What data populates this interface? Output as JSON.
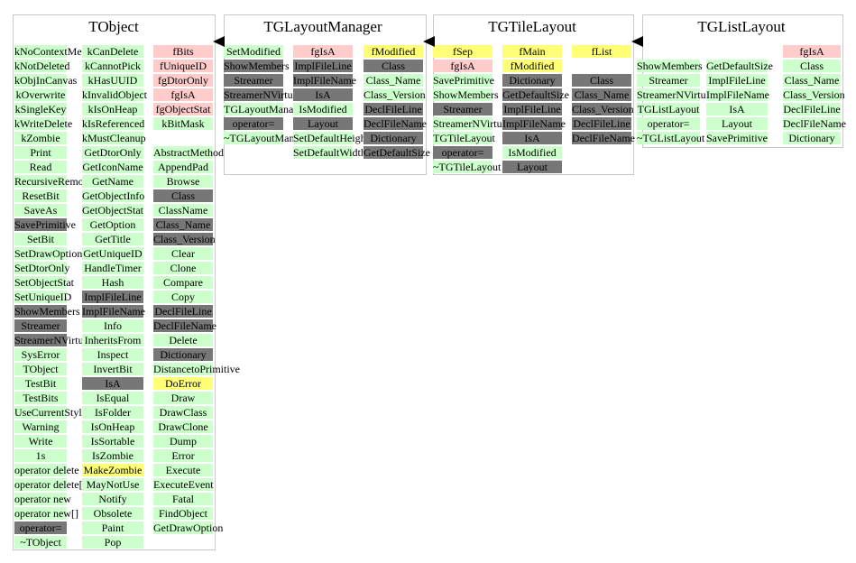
{
  "colors": {
    "data_member": "#ffcccc",
    "data_member_modified": "#ffff77",
    "method": "#ccffcc",
    "inherited": "#777777",
    "highlight": "#ffff77",
    "border": "#c8c8c8"
  },
  "classes": [
    {
      "name": "TObject",
      "columns": [
        [
          {
            "t": "kNoContextMenu",
            "c": "method"
          },
          {
            "t": "kNotDeleted",
            "c": "method"
          },
          {
            "t": "kObjInCanvas",
            "c": "method"
          },
          {
            "t": "kOverwrite",
            "c": "method"
          },
          {
            "t": "kSingleKey",
            "c": "method"
          },
          {
            "t": "kWriteDelete",
            "c": "method"
          },
          {
            "t": "kZombie",
            "c": "method"
          },
          {
            "t": "Print",
            "c": "method"
          },
          {
            "t": "Read",
            "c": "method"
          },
          {
            "t": "RecursiveRemove",
            "c": "method"
          },
          {
            "t": "ResetBit",
            "c": "method"
          },
          {
            "t": "SaveAs",
            "c": "method"
          },
          {
            "t": "SavePrimitive",
            "c": "inherited"
          },
          {
            "t": "SetBit",
            "c": "method"
          },
          {
            "t": "SetDrawOption",
            "c": "method"
          },
          {
            "t": "SetDtorOnly",
            "c": "method"
          },
          {
            "t": "SetObjectStat",
            "c": "method"
          },
          {
            "t": "SetUniqueID",
            "c": "method"
          },
          {
            "t": "ShowMembers",
            "c": "inherited"
          },
          {
            "t": "Streamer",
            "c": "inherited"
          },
          {
            "t": "StreamerNVirtual",
            "c": "inherited"
          },
          {
            "t": "SysError",
            "c": "method"
          },
          {
            "t": "TObject",
            "c": "method"
          },
          {
            "t": "TestBit",
            "c": "method"
          },
          {
            "t": "TestBits",
            "c": "method"
          },
          {
            "t": "UseCurrentStyle",
            "c": "method"
          },
          {
            "t": "Warning",
            "c": "method"
          },
          {
            "t": "Write",
            "c": "method"
          },
          {
            "t": "1s",
            "c": "method"
          },
          {
            "t": "operator delete",
            "c": "method"
          },
          {
            "t": "operator delete[]",
            "c": "method"
          },
          {
            "t": "operator new",
            "c": "method"
          },
          {
            "t": "operator new[]",
            "c": "method"
          },
          {
            "t": "operator=",
            "c": "inherited"
          },
          {
            "t": "~TObject",
            "c": "method"
          }
        ],
        [
          {
            "t": "kCanDelete",
            "c": "method"
          },
          {
            "t": "kCannotPick",
            "c": "method"
          },
          {
            "t": "kHasUUID",
            "c": "method"
          },
          {
            "t": "kInvalidObject",
            "c": "method"
          },
          {
            "t": "kIsOnHeap",
            "c": "method"
          },
          {
            "t": "kIsReferenced",
            "c": "method"
          },
          {
            "t": "kMustCleanup",
            "c": "method"
          },
          {
            "t": "GetDtorOnly",
            "c": "method"
          },
          {
            "t": "GetIconName",
            "c": "method"
          },
          {
            "t": "GetName",
            "c": "method"
          },
          {
            "t": "GetObjectInfo",
            "c": "method"
          },
          {
            "t": "GetObjectStat",
            "c": "method"
          },
          {
            "t": "GetOption",
            "c": "method"
          },
          {
            "t": "GetTitle",
            "c": "method"
          },
          {
            "t": "GetUniqueID",
            "c": "method"
          },
          {
            "t": "HandleTimer",
            "c": "method"
          },
          {
            "t": "Hash",
            "c": "method"
          },
          {
            "t": "ImplFileLine",
            "c": "inherited"
          },
          {
            "t": "ImplFileName",
            "c": "inherited"
          },
          {
            "t": "Info",
            "c": "method"
          },
          {
            "t": "InheritsFrom",
            "c": "method"
          },
          {
            "t": "Inspect",
            "c": "method"
          },
          {
            "t": "InvertBit",
            "c": "method"
          },
          {
            "t": "IsA",
            "c": "inherited"
          },
          {
            "t": "IsEqual",
            "c": "method"
          },
          {
            "t": "IsFolder",
            "c": "method"
          },
          {
            "t": "IsOnHeap",
            "c": "method"
          },
          {
            "t": "IsSortable",
            "c": "method"
          },
          {
            "t": "IsZombie",
            "c": "method"
          },
          {
            "t": "MakeZombie",
            "c": "highlight"
          },
          {
            "t": "MayNotUse",
            "c": "method"
          },
          {
            "t": "Notify",
            "c": "method"
          },
          {
            "t": "Obsolete",
            "c": "method"
          },
          {
            "t": "Paint",
            "c": "method"
          },
          {
            "t": "Pop",
            "c": "method"
          }
        ],
        [
          {
            "t": "fBits",
            "c": "data_member"
          },
          {
            "t": "fUniqueID",
            "c": "data_member"
          },
          {
            "t": "fgDtorOnly",
            "c": "data_member"
          },
          {
            "t": "fgIsA",
            "c": "data_member"
          },
          {
            "t": "fgObjectStat",
            "c": "data_member"
          },
          {
            "t": "kBitMask",
            "c": "method"
          },
          {
            "t": "",
            "c": "none"
          },
          {
            "t": "AbstractMethod",
            "c": "method"
          },
          {
            "t": "AppendPad",
            "c": "method"
          },
          {
            "t": "Browse",
            "c": "method"
          },
          {
            "t": "Class",
            "c": "inherited"
          },
          {
            "t": "ClassName",
            "c": "method"
          },
          {
            "t": "Class_Name",
            "c": "inherited"
          },
          {
            "t": "Class_Version",
            "c": "inherited"
          },
          {
            "t": "Clear",
            "c": "method"
          },
          {
            "t": "Clone",
            "c": "method"
          },
          {
            "t": "Compare",
            "c": "method"
          },
          {
            "t": "Copy",
            "c": "method"
          },
          {
            "t": "DeclFileLine",
            "c": "inherited"
          },
          {
            "t": "DeclFileName",
            "c": "inherited"
          },
          {
            "t": "Delete",
            "c": "method"
          },
          {
            "t": "Dictionary",
            "c": "inherited"
          },
          {
            "t": "DistancetoPrimitive",
            "c": "method"
          },
          {
            "t": "DoError",
            "c": "highlight"
          },
          {
            "t": "Draw",
            "c": "method"
          },
          {
            "t": "DrawClass",
            "c": "method"
          },
          {
            "t": "DrawClone",
            "c": "method"
          },
          {
            "t": "Dump",
            "c": "method"
          },
          {
            "t": "Error",
            "c": "method"
          },
          {
            "t": "Execute",
            "c": "method"
          },
          {
            "t": "ExecuteEvent",
            "c": "method"
          },
          {
            "t": "Fatal",
            "c": "method"
          },
          {
            "t": "FindObject",
            "c": "method"
          },
          {
            "t": "GetDrawOption",
            "c": "method"
          }
        ]
      ]
    },
    {
      "name": "TGLayoutManager",
      "columns": [
        [
          {
            "t": "SetModified",
            "c": "method"
          },
          {
            "t": "ShowMembers",
            "c": "inherited"
          },
          {
            "t": "Streamer",
            "c": "inherited"
          },
          {
            "t": "StreamerNVirtual",
            "c": "inherited"
          },
          {
            "t": "TGLayoutManager",
            "c": "method"
          },
          {
            "t": "operator=",
            "c": "inherited"
          },
          {
            "t": "~TGLayoutManager",
            "c": "method"
          }
        ],
        [
          {
            "t": "fgIsA",
            "c": "data_member"
          },
          {
            "t": "ImplFileLine",
            "c": "inherited"
          },
          {
            "t": "ImplFileName",
            "c": "inherited"
          },
          {
            "t": "IsA",
            "c": "inherited"
          },
          {
            "t": "IsModified",
            "c": "method"
          },
          {
            "t": "Layout",
            "c": "inherited"
          },
          {
            "t": "SetDefaultHeight",
            "c": "method"
          },
          {
            "t": "SetDefaultWidth",
            "c": "method"
          }
        ],
        [
          {
            "t": "fModified",
            "c": "data_member_modified"
          },
          {
            "t": "Class",
            "c": "inherited"
          },
          {
            "t": "Class_Name",
            "c": "method"
          },
          {
            "t": "Class_Version",
            "c": "method"
          },
          {
            "t": "DeclFileLine",
            "c": "inherited"
          },
          {
            "t": "DeclFileName",
            "c": "inherited"
          },
          {
            "t": "Dictionary",
            "c": "inherited"
          },
          {
            "t": "GetDefaultSize",
            "c": "inherited"
          }
        ]
      ]
    },
    {
      "name": "TGTileLayout",
      "columns": [
        [
          {
            "t": "fSep",
            "c": "data_member_modified"
          },
          {
            "t": "fgIsA",
            "c": "data_member"
          },
          {
            "t": "SavePrimitive",
            "c": "method"
          },
          {
            "t": "ShowMembers",
            "c": "method"
          },
          {
            "t": "Streamer",
            "c": "inherited"
          },
          {
            "t": "StreamerNVirtual",
            "c": "method"
          },
          {
            "t": "TGTileLayout",
            "c": "method"
          },
          {
            "t": "operator=",
            "c": "inherited"
          },
          {
            "t": "~TGTileLayout",
            "c": "method"
          }
        ],
        [
          {
            "t": "fMain",
            "c": "data_member_modified"
          },
          {
            "t": "fModified",
            "c": "data_member_modified"
          },
          {
            "t": "Dictionary",
            "c": "inherited"
          },
          {
            "t": "GetDefaultSize",
            "c": "inherited"
          },
          {
            "t": "ImplFileLine",
            "c": "inherited"
          },
          {
            "t": "ImplFileName",
            "c": "inherited"
          },
          {
            "t": "IsA",
            "c": "inherited"
          },
          {
            "t": "IsModified",
            "c": "method"
          },
          {
            "t": "Layout",
            "c": "inherited"
          }
        ],
        [
          {
            "t": "fList",
            "c": "data_member_modified"
          },
          {
            "t": "",
            "c": "none"
          },
          {
            "t": "Class",
            "c": "inherited"
          },
          {
            "t": "Class_Name",
            "c": "inherited"
          },
          {
            "t": "Class_Version",
            "c": "inherited"
          },
          {
            "t": "DeclFileLine",
            "c": "inherited"
          },
          {
            "t": "DeclFileName",
            "c": "inherited"
          }
        ]
      ]
    },
    {
      "name": "TGListLayout",
      "columns": [
        [
          {
            "t": "",
            "c": "none"
          },
          {
            "t": "ShowMembers",
            "c": "method"
          },
          {
            "t": "Streamer",
            "c": "method"
          },
          {
            "t": "StreamerNVirtual",
            "c": "method"
          },
          {
            "t": "TGListLayout",
            "c": "method"
          },
          {
            "t": "operator=",
            "c": "method"
          },
          {
            "t": "~TGListLayout",
            "c": "method"
          }
        ],
        [
          {
            "t": "",
            "c": "none"
          },
          {
            "t": "GetDefaultSize",
            "c": "method"
          },
          {
            "t": "ImplFileLine",
            "c": "method"
          },
          {
            "t": "ImplFileName",
            "c": "method"
          },
          {
            "t": "IsA",
            "c": "method"
          },
          {
            "t": "Layout",
            "c": "method"
          },
          {
            "t": "SavePrimitive",
            "c": "method"
          }
        ],
        [
          {
            "t": "fgIsA",
            "c": "data_member"
          },
          {
            "t": "Class",
            "c": "method"
          },
          {
            "t": "Class_Name",
            "c": "method"
          },
          {
            "t": "Class_Version",
            "c": "method"
          },
          {
            "t": "DeclFileLine",
            "c": "method"
          },
          {
            "t": "DeclFileName",
            "c": "method"
          },
          {
            "t": "Dictionary",
            "c": "method"
          }
        ]
      ]
    }
  ]
}
